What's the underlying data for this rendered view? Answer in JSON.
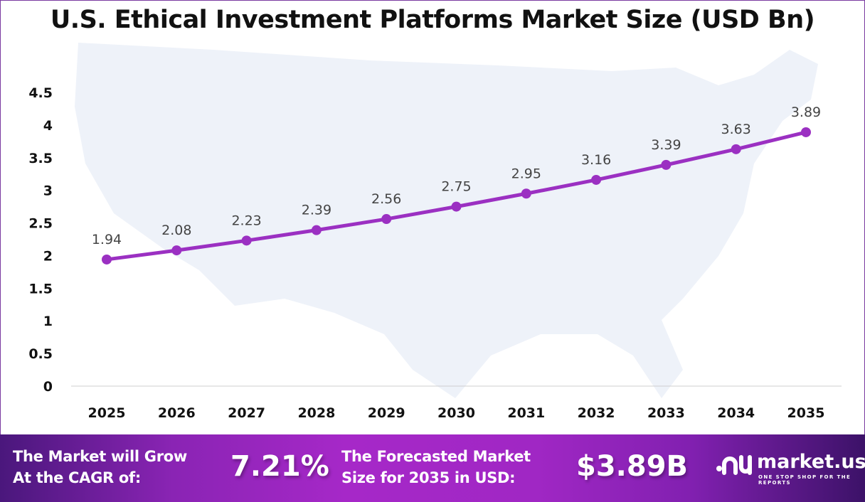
{
  "chart_data": {
    "type": "line",
    "title": "U.S. Ethical Investment Platforms Market Size (USD Bn)",
    "categories": [
      "2025",
      "2026",
      "2027",
      "2028",
      "2029",
      "2030",
      "2031",
      "2032",
      "2033",
      "2034",
      "2035"
    ],
    "values": [
      1.94,
      2.08,
      2.23,
      2.39,
      2.56,
      2.75,
      2.95,
      3.16,
      3.39,
      3.63,
      3.89
    ],
    "yticks": [
      "0",
      "0.5",
      "1",
      "1.5",
      "2",
      "2.5",
      "3",
      "3.5",
      "4",
      "4.5"
    ],
    "ylim": [
      0,
      4.5
    ],
    "grid": false,
    "line_color": "#9b30c2",
    "data_labels": true
  },
  "footer": {
    "cagr_label_1": "The Market will Grow",
    "cagr_label_2": "At the CAGR of:",
    "cagr_value": "7.21%",
    "forecast_label_1": "The Forecasted Market",
    "forecast_label_2": "Size for 2035 in USD:",
    "forecast_value": "$3.89B",
    "logo_name": "market.us",
    "logo_tagline": "ONE STOP SHOP FOR THE REPORTS"
  }
}
